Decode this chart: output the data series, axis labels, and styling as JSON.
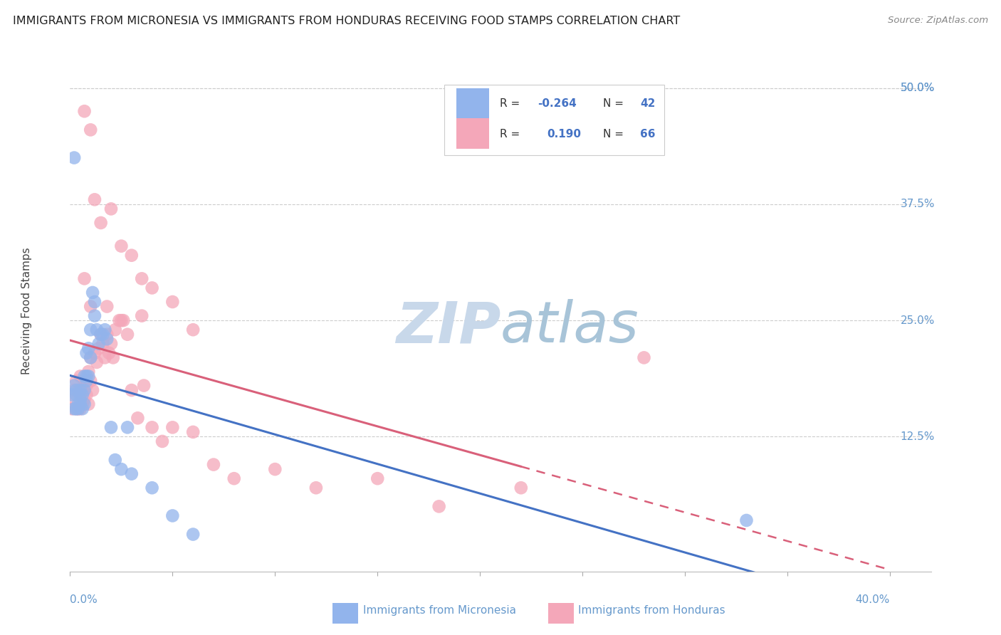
{
  "title": "IMMIGRANTS FROM MICRONESIA VS IMMIGRANTS FROM HONDURAS RECEIVING FOOD STAMPS CORRELATION CHART",
  "source": "Source: ZipAtlas.com",
  "ylabel": "Receiving Food Stamps",
  "ytick_labels": [
    "12.5%",
    "25.0%",
    "37.5%",
    "50.0%"
  ],
  "ytick_values": [
    0.125,
    0.25,
    0.375,
    0.5
  ],
  "xlim": [
    0.0,
    0.42
  ],
  "ylim": [
    -0.02,
    0.54
  ],
  "plot_xlim": [
    0.0,
    0.4
  ],
  "color_micronesia": "#92B4EC",
  "color_honduras": "#F4A7B9",
  "line_micronesia": "#4472C4",
  "line_honduras": "#D9607A",
  "watermark": "ZIPatlas",
  "watermark_color": "#C8D8EA",
  "micronesia_x": [
    0.001,
    0.002,
    0.002,
    0.003,
    0.003,
    0.003,
    0.004,
    0.004,
    0.005,
    0.005,
    0.005,
    0.006,
    0.006,
    0.007,
    0.007,
    0.007,
    0.008,
    0.008,
    0.008,
    0.009,
    0.009,
    0.01,
    0.01,
    0.011,
    0.012,
    0.012,
    0.013,
    0.014,
    0.015,
    0.016,
    0.017,
    0.018,
    0.02,
    0.022,
    0.025,
    0.028,
    0.03,
    0.04,
    0.05,
    0.06,
    0.33,
    0.002
  ],
  "micronesia_y": [
    0.17,
    0.155,
    0.18,
    0.155,
    0.17,
    0.175,
    0.155,
    0.16,
    0.16,
    0.165,
    0.175,
    0.155,
    0.17,
    0.16,
    0.175,
    0.19,
    0.185,
    0.19,
    0.215,
    0.19,
    0.22,
    0.21,
    0.24,
    0.28,
    0.255,
    0.27,
    0.24,
    0.225,
    0.235,
    0.235,
    0.24,
    0.23,
    0.135,
    0.1,
    0.09,
    0.135,
    0.085,
    0.07,
    0.04,
    0.02,
    0.035,
    0.425
  ],
  "honduras_x": [
    0.001,
    0.002,
    0.002,
    0.003,
    0.003,
    0.004,
    0.004,
    0.005,
    0.005,
    0.005,
    0.006,
    0.006,
    0.007,
    0.007,
    0.008,
    0.008,
    0.009,
    0.009,
    0.01,
    0.01,
    0.011,
    0.012,
    0.013,
    0.014,
    0.015,
    0.016,
    0.017,
    0.018,
    0.019,
    0.02,
    0.021,
    0.022,
    0.024,
    0.026,
    0.028,
    0.03,
    0.033,
    0.036,
    0.04,
    0.045,
    0.05,
    0.06,
    0.07,
    0.08,
    0.1,
    0.12,
    0.15,
    0.18,
    0.22,
    0.28,
    0.007,
    0.01,
    0.012,
    0.015,
    0.02,
    0.025,
    0.03,
    0.035,
    0.04,
    0.05,
    0.007,
    0.01,
    0.018,
    0.025,
    0.035,
    0.06
  ],
  "honduras_y": [
    0.155,
    0.165,
    0.175,
    0.155,
    0.185,
    0.155,
    0.175,
    0.155,
    0.17,
    0.19,
    0.16,
    0.175,
    0.165,
    0.185,
    0.17,
    0.18,
    0.16,
    0.195,
    0.185,
    0.21,
    0.175,
    0.215,
    0.205,
    0.22,
    0.235,
    0.225,
    0.21,
    0.235,
    0.215,
    0.225,
    0.21,
    0.24,
    0.25,
    0.25,
    0.235,
    0.175,
    0.145,
    0.18,
    0.135,
    0.12,
    0.135,
    0.13,
    0.095,
    0.08,
    0.09,
    0.07,
    0.08,
    0.05,
    0.07,
    0.21,
    0.475,
    0.455,
    0.38,
    0.355,
    0.37,
    0.33,
    0.32,
    0.295,
    0.285,
    0.27,
    0.295,
    0.265,
    0.265,
    0.25,
    0.255,
    0.24
  ]
}
